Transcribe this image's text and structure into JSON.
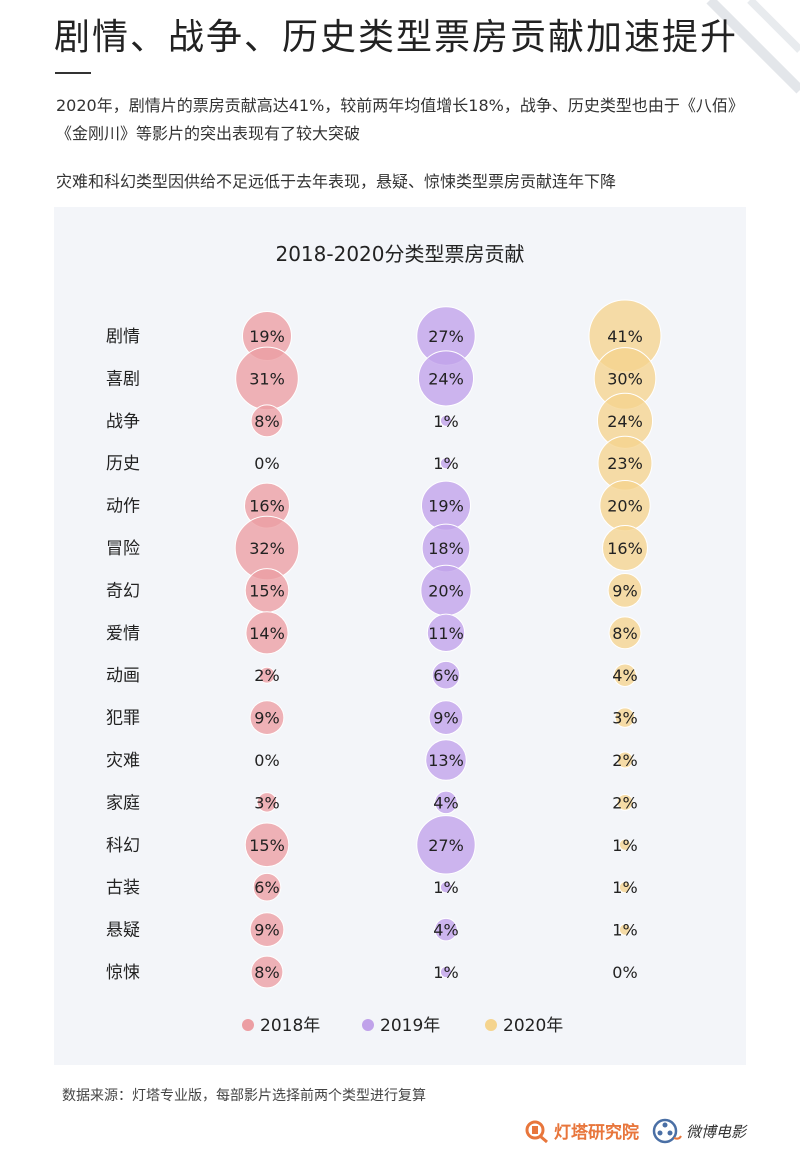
{
  "header": {
    "title": "剧情、战争、历史类型票房贡献加速提升",
    "paragraph1": "2020年，剧情片的票房贡献高达41%，较前两年均值增长18%，战争、历史类型也由于《八佰》《金刚川》等影片的突出表现有了较大突破",
    "paragraph2": "灾难和科幻类型因供给不足远低于去年表现，悬疑、惊悚类型票房贡献连年下降"
  },
  "chart_data": {
    "type": "bubble",
    "title": "2018-2020分类型票房贡献",
    "unit": "%",
    "categories": [
      "剧情",
      "喜剧",
      "战争",
      "历史",
      "动作",
      "冒险",
      "奇幻",
      "爱情",
      "动画",
      "犯罪",
      "灾难",
      "家庭",
      "科幻",
      "古装",
      "悬疑",
      "惊悚"
    ],
    "series": [
      {
        "name": "2018年",
        "color": "#ec9ea3",
        "values": [
          19,
          31,
          8,
          0,
          16,
          32,
          15,
          14,
          2,
          9,
          0,
          3,
          15,
          6,
          9,
          8
        ]
      },
      {
        "name": "2019年",
        "color": "#c0a2ea",
        "values": [
          27,
          24,
          1,
          1,
          19,
          18,
          20,
          11,
          6,
          9,
          13,
          4,
          27,
          1,
          4,
          1
        ]
      },
      {
        "name": "2020年",
        "color": "#f5d48e",
        "values": [
          41,
          30,
          24,
          23,
          20,
          16,
          9,
          8,
          4,
          3,
          2,
          2,
          1,
          1,
          1,
          0
        ]
      }
    ],
    "legend_position": "bottom",
    "grid": false
  },
  "footer": {
    "note": "数据来源：灯塔专业版，每部影片选择前两个类型进行复算",
    "logo_dengta": "灯塔研究院",
    "logo_weibo": "微博电影"
  }
}
